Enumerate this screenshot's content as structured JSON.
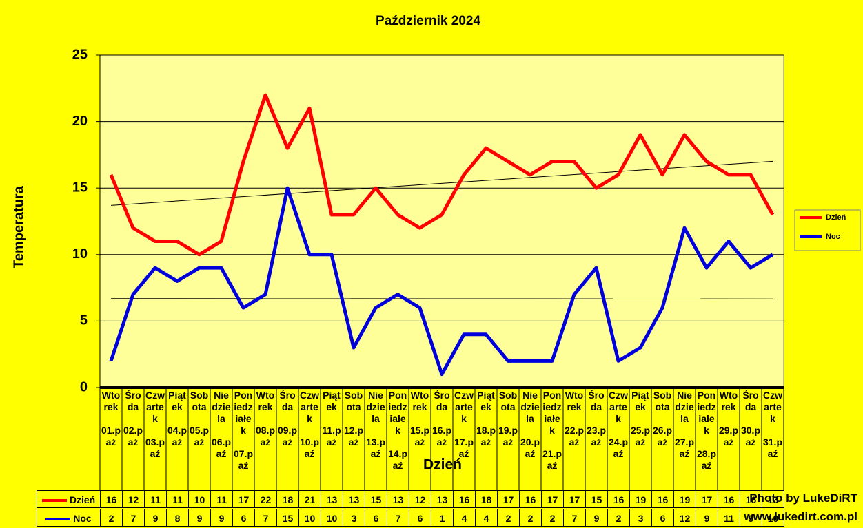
{
  "chart_data": {
    "type": "line",
    "title": "Październik 2024",
    "y_label": "Temperatura",
    "x_label": "Dzień",
    "categories": [
      "Wtorek 01.paź",
      "Środa 02.paź",
      "Czwartek 03.paź",
      "Piątek 04.paź",
      "Sobota 05.paź",
      "Niedziela 06.paź",
      "Poniedziałek 07.paź",
      "Wtorek 08.paź",
      "Środa 09.paź",
      "Czwartek 10.paź",
      "Piątek 11.paź",
      "Sobota 12.paź",
      "Niedziela 13.paź",
      "Poniedziałek 14.paź",
      "Wtorek 15.paź",
      "Środa 16.paź",
      "Czwartek 17.paź",
      "Piątek 18.paź",
      "Sobota 19.paź",
      "Niedziela 20.paź",
      "Poniedziałek 21.paź",
      "Wtorek 22.paź",
      "Środa 23.paź",
      "Czwartek 24.paź",
      "Piątek 25.paź",
      "Sobota 26.paź",
      "Niedziela 27.paź",
      "Poniedziałek 28.paź",
      "Wtorek 29.paź",
      "Środa 30.paź",
      "Czwartek 31.paź"
    ],
    "series": [
      {
        "name": "Dzień",
        "color": "#ff0000",
        "values": [
          16,
          12,
          11,
          11,
          10,
          11,
          17,
          22,
          18,
          21,
          13,
          13,
          15,
          13,
          12,
          13,
          16,
          18,
          17,
          16,
          17,
          17,
          15,
          16,
          19,
          16,
          19,
          17,
          16,
          16,
          13
        ]
      },
      {
        "name": "Noc",
        "color": "#0000dd",
        "values": [
          2,
          7,
          9,
          8,
          9,
          9,
          6,
          7,
          15,
          10,
          10,
          3,
          6,
          7,
          6,
          1,
          4,
          4,
          2,
          2,
          2,
          7,
          9,
          2,
          3,
          6,
          12,
          9,
          11,
          9,
          10
        ]
      }
    ],
    "ylim": [
      0,
      25
    ],
    "yticks": [
      0,
      5,
      10,
      15,
      20,
      25
    ],
    "grid": true,
    "trendline": true,
    "legend": "right",
    "data_table": true,
    "watermark": [
      "Photo by LukeDiRT",
      "www.lukedirt.com.pl"
    ]
  }
}
